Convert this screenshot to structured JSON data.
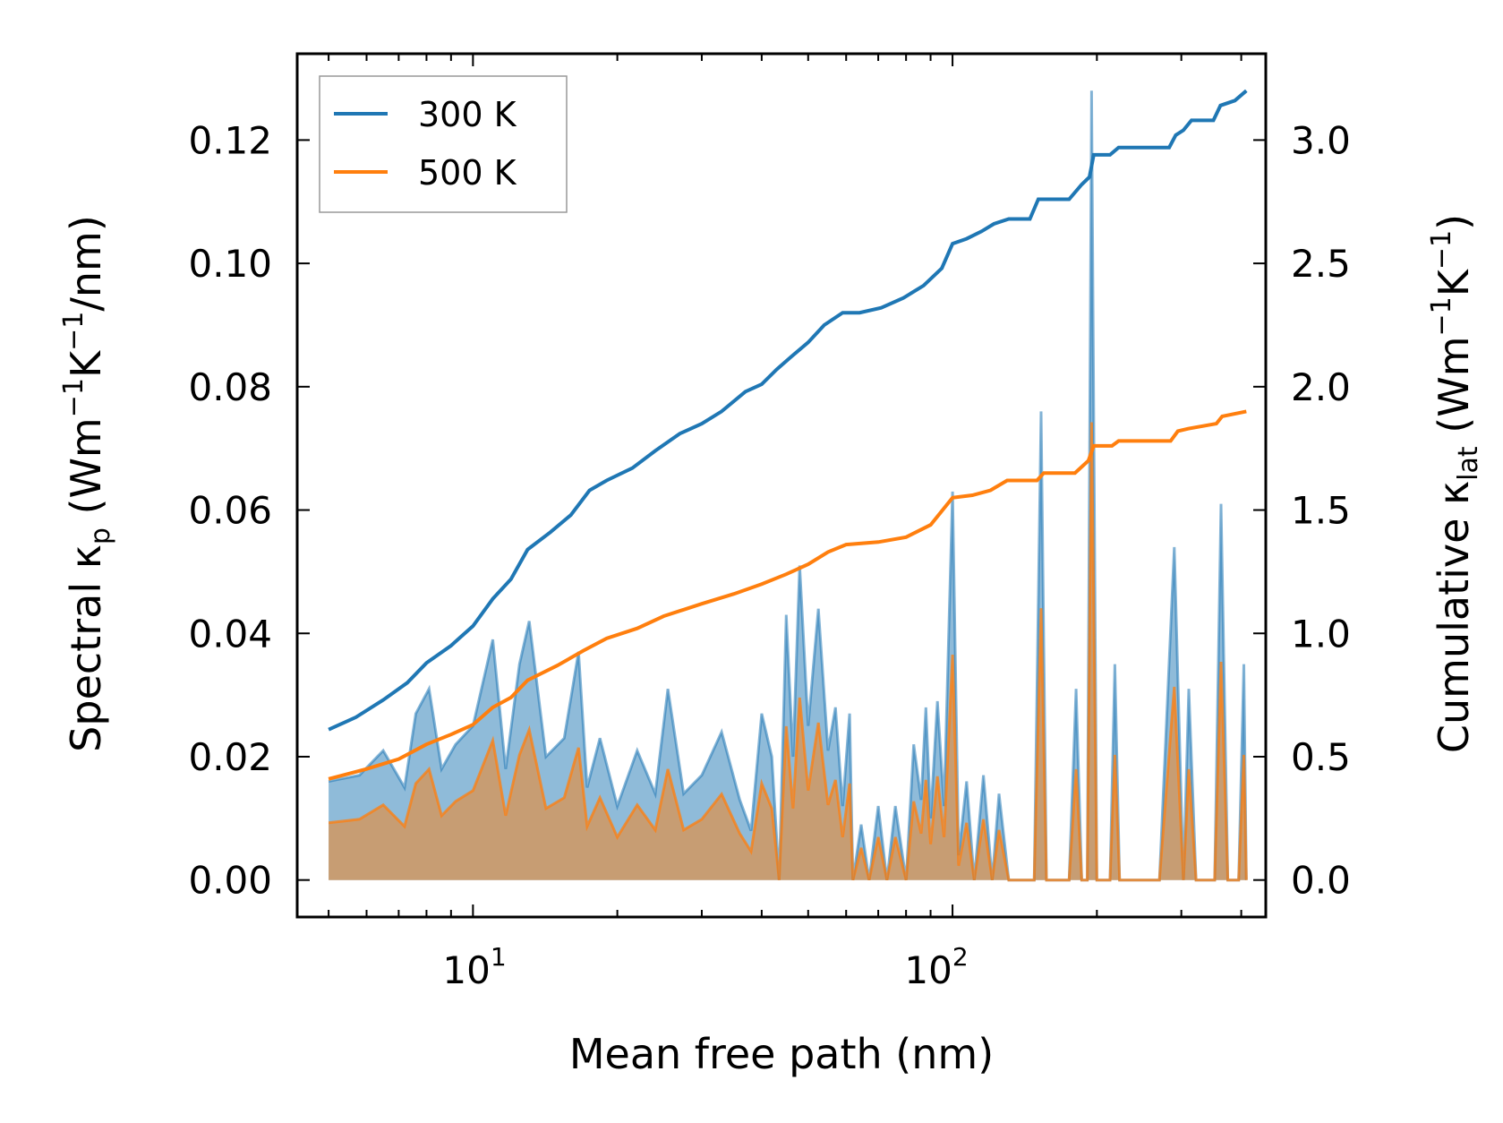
{
  "chart_data": {
    "type": "line",
    "xlabel": "Mean free path (nm)",
    "ylabel_left": {
      "main": "Spectral κ",
      "sub": "p",
      "units": " (Wm",
      "exp1": "−1",
      "mid": "K",
      "exp2": "−1",
      "tail": "/nm)"
    },
    "ylabel_right": {
      "main": "Cumulative κ",
      "sub": "lat",
      "units": " (Wm",
      "exp1": "−1",
      "mid": "K",
      "exp2": "−1",
      "tail": ")"
    },
    "xscale": "log",
    "xlim": [
      4.3,
      450
    ],
    "ylim_left": [
      -0.006,
      0.134
    ],
    "ylim_right": [
      -0.15,
      3.35
    ],
    "xticks_major": [
      {
        "value": 10,
        "base": "10",
        "exp": "1"
      },
      {
        "value": 100,
        "base": "10",
        "exp": "2"
      }
    ],
    "yticks_left": [
      "0.00",
      "0.02",
      "0.04",
      "0.06",
      "0.08",
      "0.10",
      "0.12"
    ],
    "yticks_right": [
      "0.0",
      "0.5",
      "1.0",
      "1.5",
      "2.0",
      "2.5",
      "3.0"
    ],
    "legend": {
      "position": "upper-left",
      "entries": [
        "300 K",
        "500 K"
      ]
    },
    "colors": {
      "s300": "#1f77b4",
      "s500": "#ff7f0e",
      "fill300": "#1f77b4",
      "fill500": "#ff7f0e"
    },
    "spectral_anchors": [
      [
        5,
        0.016
      ],
      [
        5.8,
        0.017
      ],
      [
        6.5,
        0.021
      ],
      [
        7.2,
        0.015
      ],
      [
        7.6,
        0.027
      ],
      [
        8.1,
        0.031
      ],
      [
        8.6,
        0.018
      ],
      [
        9.2,
        0.022
      ],
      [
        10,
        0.025
      ],
      [
        11,
        0.039
      ],
      [
        11.7,
        0.018
      ],
      [
        12.5,
        0.035
      ],
      [
        13.1,
        0.042
      ],
      [
        14.2,
        0.02
      ],
      [
        15.5,
        0.023
      ],
      [
        16.6,
        0.037
      ],
      [
        17.3,
        0.015
      ],
      [
        18.4,
        0.023
      ],
      [
        20,
        0.012
      ],
      [
        22,
        0.021
      ],
      [
        24,
        0.014
      ],
      [
        25.5,
        0.031
      ],
      [
        27.5,
        0.014
      ],
      [
        30,
        0.017
      ],
      [
        33,
        0.024
      ],
      [
        36,
        0.013
      ],
      [
        38,
        0.008
      ],
      [
        40,
        0.027
      ],
      [
        42,
        0.02
      ],
      [
        43.5,
        0.0
      ],
      [
        45,
        0.043
      ],
      [
        46.5,
        0.02
      ],
      [
        48,
        0.051
      ],
      [
        50,
        0.025
      ],
      [
        52.5,
        0.044
      ],
      [
        55,
        0.021
      ],
      [
        57,
        0.028
      ],
      [
        59,
        0.012
      ],
      [
        61,
        0.027
      ],
      [
        62,
        0.0
      ],
      [
        64.5,
        0.009
      ],
      [
        67,
        0.0
      ],
      [
        70,
        0.012
      ],
      [
        73,
        0.0
      ],
      [
        76,
        0.012
      ],
      [
        80,
        0.0
      ],
      [
        83,
        0.022
      ],
      [
        86,
        0.013
      ],
      [
        88,
        0.028
      ],
      [
        90,
        0.01
      ],
      [
        93,
        0.029
      ],
      [
        96,
        0.012
      ],
      [
        100,
        0.063
      ],
      [
        103,
        0.004
      ],
      [
        107,
        0.016
      ],
      [
        111,
        0.0
      ],
      [
        116,
        0.017
      ],
      [
        121,
        0.0
      ],
      [
        125,
        0.014
      ],
      [
        131,
        0.0
      ],
      [
        138,
        0.0
      ],
      [
        148,
        0.0
      ],
      [
        153,
        0.076
      ],
      [
        157,
        0.0
      ],
      [
        175,
        0.0
      ],
      [
        181,
        0.031
      ],
      [
        186,
        0.0
      ],
      [
        191,
        0.0
      ],
      [
        195,
        0.128
      ],
      [
        200,
        0.0
      ],
      [
        213,
        0.0
      ],
      [
        218,
        0.035
      ],
      [
        223,
        0.0
      ],
      [
        270,
        0.0
      ],
      [
        290,
        0.054
      ],
      [
        303,
        0.0
      ],
      [
        311,
        0.031
      ],
      [
        322,
        0.0
      ],
      [
        352,
        0.0
      ],
      [
        363,
        0.061
      ],
      [
        375,
        0.0
      ],
      [
        395,
        0.0
      ],
      [
        405,
        0.035
      ],
      [
        410,
        0.0
      ]
    ],
    "spectral_500_scale": 0.58,
    "cumulative_300": [
      [
        5,
        0.61
      ],
      [
        5.7,
        0.66
      ],
      [
        6.5,
        0.73
      ],
      [
        7.3,
        0.8
      ],
      [
        8,
        0.88
      ],
      [
        9,
        0.95
      ],
      [
        10,
        1.03
      ],
      [
        11,
        1.14
      ],
      [
        12,
        1.22
      ],
      [
        13,
        1.34
      ],
      [
        14.5,
        1.41
      ],
      [
        16,
        1.48
      ],
      [
        17.5,
        1.58
      ],
      [
        19,
        1.62
      ],
      [
        21.5,
        1.67
      ],
      [
        24,
        1.74
      ],
      [
        27,
        1.81
      ],
      [
        30,
        1.85
      ],
      [
        33,
        1.9
      ],
      [
        37,
        1.98
      ],
      [
        40,
        2.01
      ],
      [
        43,
        2.07
      ],
      [
        46,
        2.12
      ],
      [
        50,
        2.18
      ],
      [
        54,
        2.25
      ],
      [
        59,
        2.3
      ],
      [
        64,
        2.3
      ],
      [
        71,
        2.32
      ],
      [
        79,
        2.36
      ],
      [
        87,
        2.41
      ],
      [
        95,
        2.48
      ],
      [
        100,
        2.58
      ],
      [
        107,
        2.6
      ],
      [
        115,
        2.63
      ],
      [
        122,
        2.66
      ],
      [
        131,
        2.68
      ],
      [
        145,
        2.68
      ],
      [
        151,
        2.76
      ],
      [
        175,
        2.76
      ],
      [
        186,
        2.82
      ],
      [
        193,
        2.85
      ],
      [
        197,
        2.94
      ],
      [
        213,
        2.94
      ],
      [
        222,
        2.97
      ],
      [
        283,
        2.97
      ],
      [
        292,
        3.02
      ],
      [
        303,
        3.04
      ],
      [
        315,
        3.08
      ],
      [
        350,
        3.08
      ],
      [
        362,
        3.14
      ],
      [
        388,
        3.16
      ],
      [
        410,
        3.2
      ]
    ],
    "cumulative_500": [
      [
        5,
        0.41
      ],
      [
        6,
        0.45
      ],
      [
        7,
        0.49
      ],
      [
        8,
        0.55
      ],
      [
        9,
        0.59
      ],
      [
        10,
        0.63
      ],
      [
        11,
        0.7
      ],
      [
        12,
        0.74
      ],
      [
        13,
        0.81
      ],
      [
        15,
        0.87
      ],
      [
        17,
        0.93
      ],
      [
        19,
        0.98
      ],
      [
        22,
        1.02
      ],
      [
        25,
        1.07
      ],
      [
        30,
        1.12
      ],
      [
        35,
        1.16
      ],
      [
        40,
        1.2
      ],
      [
        45,
        1.24
      ],
      [
        50,
        1.28
      ],
      [
        55,
        1.33
      ],
      [
        60,
        1.36
      ],
      [
        70,
        1.37
      ],
      [
        80,
        1.39
      ],
      [
        90,
        1.44
      ],
      [
        100,
        1.55
      ],
      [
        110,
        1.56
      ],
      [
        120,
        1.58
      ],
      [
        130,
        1.62
      ],
      [
        150,
        1.62
      ],
      [
        155,
        1.65
      ],
      [
        180,
        1.65
      ],
      [
        192,
        1.7
      ],
      [
        197,
        1.76
      ],
      [
        215,
        1.76
      ],
      [
        222,
        1.78
      ],
      [
        285,
        1.78
      ],
      [
        295,
        1.82
      ],
      [
        310,
        1.83
      ],
      [
        355,
        1.85
      ],
      [
        365,
        1.88
      ],
      [
        410,
        1.9
      ]
    ]
  }
}
